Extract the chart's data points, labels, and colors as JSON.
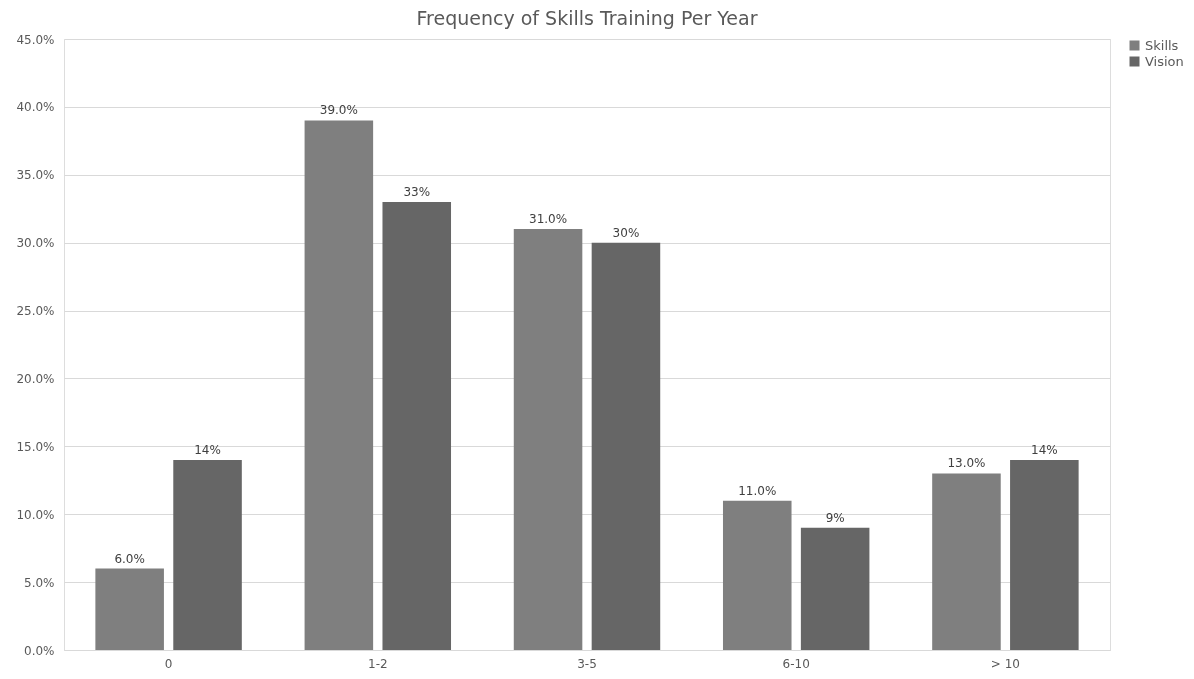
{
  "chart_data": {
    "type": "bar",
    "title": "Frequency of Skills Training Per Year",
    "categories": [
      "0",
      "1-2",
      "3-5",
      "6-10",
      "> 10"
    ],
    "series": [
      {
        "name": "Skills",
        "color": "#7f7f7f",
        "values": [
          6,
          39,
          31,
          11,
          13
        ],
        "value_labels": [
          "6.0%",
          "39.0%",
          "31.0%",
          "11.0%",
          "13.0%"
        ]
      },
      {
        "name": "Vision",
        "color": "#666666",
        "values": [
          14,
          33,
          30,
          9,
          14
        ],
        "value_labels": [
          "14%",
          "33%",
          "30%",
          "9%",
          "14%"
        ]
      }
    ],
    "ylim": [
      0,
      45
    ],
    "yticks": [
      {
        "value": 0,
        "label": "0.0%"
      },
      {
        "value": 5,
        "label": "5.0%"
      },
      {
        "value": 10,
        "label": "10.0%"
      },
      {
        "value": 15,
        "label": "15.0%"
      },
      {
        "value": 20,
        "label": "20.0%"
      },
      {
        "value": 25,
        "label": "25.0%"
      },
      {
        "value": 30,
        "label": "30.0%"
      },
      {
        "value": 35,
        "label": "35.0%"
      },
      {
        "value": 40,
        "label": "40.0%"
      },
      {
        "value": 45,
        "label": "45.0%"
      }
    ],
    "grid": "y",
    "legend": "right"
  }
}
